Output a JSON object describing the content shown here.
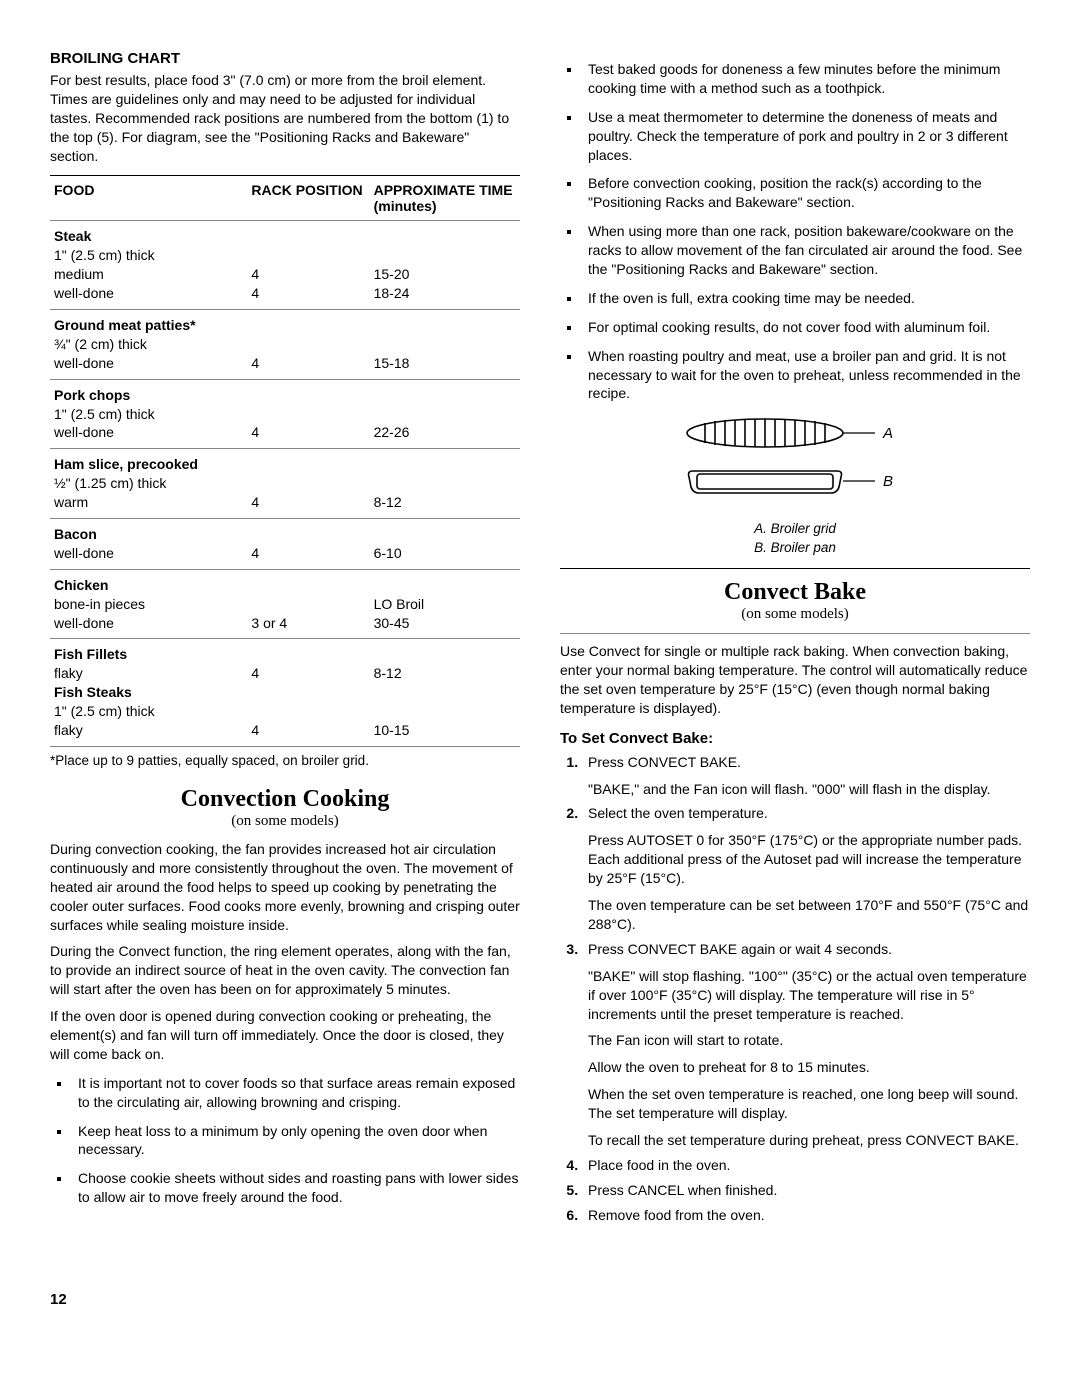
{
  "left": {
    "broiling": {
      "title": "BROILING CHART",
      "intro": "For best results, place food 3\" (7.0 cm) or more from the broil element. Times are guidelines only and may need to be adjusted for individual tastes. Recommended rack positions are numbered from the bottom (1) to the top (5). For diagram, see the \"Positioning Racks and Bakeware\" section.",
      "headers": [
        "FOOD",
        "RACK POSITION",
        "APPROXIMATE TIME (minutes)"
      ],
      "rows": [
        {
          "head": "Steak",
          "sub": "1\" (2.5 cm) thick",
          "lines": [
            [
              "medium",
              "4",
              "15-20"
            ],
            [
              "well-done",
              "4",
              "18-24"
            ]
          ]
        },
        {
          "head": "Ground meat patties*",
          "sub": "¾\" (2 cm) thick",
          "lines": [
            [
              "well-done",
              "4",
              "15-18"
            ]
          ]
        },
        {
          "head": "Pork chops",
          "sub": "1\" (2.5 cm) thick",
          "lines": [
            [
              "well-done",
              "4",
              "22-26"
            ]
          ]
        },
        {
          "head": "Ham slice, precooked",
          "sub": "½\" (1.25 cm) thick",
          "lines": [
            [
              "warm",
              "4",
              "8-12"
            ]
          ]
        },
        {
          "head": "Bacon",
          "sub": "",
          "lines": [
            [
              "well-done",
              "4",
              "6-10"
            ]
          ]
        },
        {
          "head": "Chicken",
          "sub": "",
          "lines": [
            [
              "bone-in pieces",
              "",
              "LO Broil"
            ],
            [
              "well-done",
              "3 or 4",
              "30-45"
            ]
          ]
        },
        {
          "head": "Fish Fillets",
          "sub": "",
          "lines": [
            [
              "flaky",
              "4",
              "8-12"
            ]
          ],
          "head2": "Fish Steaks",
          "sub2": "1\" (2.5 cm) thick",
          "lines2": [
            [
              "flaky",
              "4",
              "10-15"
            ]
          ]
        }
      ],
      "footnote": "*Place up to 9 patties, equally spaced, on broiler grid."
    },
    "conv": {
      "title": "Convection Cooking",
      "sub": "(on some models)",
      "p1": "During convection cooking, the fan provides increased hot air circulation continuously and more consistently throughout the oven. The movement of heated air around the food helps to speed up cooking by penetrating the cooler outer surfaces. Food cooks more evenly, browning and crisping outer surfaces while sealing moisture inside.",
      "p2": "During the Convect function, the ring element operates, along with the fan, to provide an indirect source of heat in the oven cavity. The convection fan will start after the oven has been on for approximately 5 minutes.",
      "p3": "If the oven door is opened during convection cooking or preheating, the element(s) and fan will turn off immediately. Once the door is closed, they will come back on.",
      "bullets_left": [
        "It is important not to cover foods so that surface areas remain exposed to the circulating air, allowing browning and crisping.",
        "Keep heat loss to a minimum by only opening the oven door when necessary.",
        "Choose cookie sheets without sides and roasting pans with lower sides to allow air to move freely around the food."
      ]
    }
  },
  "right": {
    "bullets": [
      "Test baked goods for doneness a few minutes before the minimum cooking time with a method such as a toothpick.",
      "Use a meat thermometer to determine the doneness of meats and poultry. Check the temperature of pork and poultry in 2 or 3 different places.",
      "Before convection cooking, position the rack(s) according to the \"Positioning Racks and Bakeware\" section.",
      "When using more than one rack, position bakeware/cookware on the racks to allow movement of the fan circulated air around the food. See the \"Positioning Racks and Bakeware\" section.",
      "If the oven is full, extra cooking time may be needed.",
      "For optimal cooking results, do not cover food with aluminum foil.",
      "When roasting poultry and meat, use a broiler pan and grid. It is not necessary to wait for the oven to preheat, unless recommended in the recipe."
    ],
    "diag": {
      "a_label": "A",
      "b_label": "B",
      "caption_a": "A. Broiler grid",
      "caption_b": "B. Broiler pan"
    },
    "bake": {
      "title": "Convect Bake",
      "sub": "(on some models)",
      "intro": "Use Convect for single or multiple rack baking. When convection baking, enter your normal baking temperature. The control will automatically reduce the set oven temperature by 25°F (15°C) (even though normal baking temperature is displayed).",
      "set_title": "To Set Convect Bake:",
      "steps": [
        {
          "t": "Press CONVECT BAKE.",
          "extra": [
            "\"BAKE,\" and the Fan icon will flash. \"000\" will flash in the display."
          ]
        },
        {
          "t": "Select the oven temperature.",
          "extra": [
            "Press AUTOSET 0 for 350°F (175°C) or the appropriate number pads. Each additional press of the Autoset pad will increase the temperature by 25°F (15°C).",
            "The oven temperature can be set between 170°F and 550°F (75°C and 288°C)."
          ]
        },
        {
          "t": "Press CONVECT BAKE again or wait 4 seconds.",
          "extra": [
            "\"BAKE\" will stop flashing. \"100°\" (35°C) or the actual oven temperature if over 100°F (35°C) will display. The temperature will rise in 5° increments until the preset temperature is reached.",
            "The Fan icon will start to rotate.",
            "Allow the oven to preheat for 8 to 15 minutes.",
            "When the set oven temperature is reached, one long beep will sound. The set temperature will display.",
            "To recall the set temperature during preheat, press CONVECT BAKE."
          ]
        },
        {
          "t": "Place food in the oven.",
          "extra": []
        },
        {
          "t": "Press CANCEL when finished.",
          "extra": []
        },
        {
          "t": "Remove food from the oven.",
          "extra": []
        }
      ]
    }
  },
  "page": "12"
}
